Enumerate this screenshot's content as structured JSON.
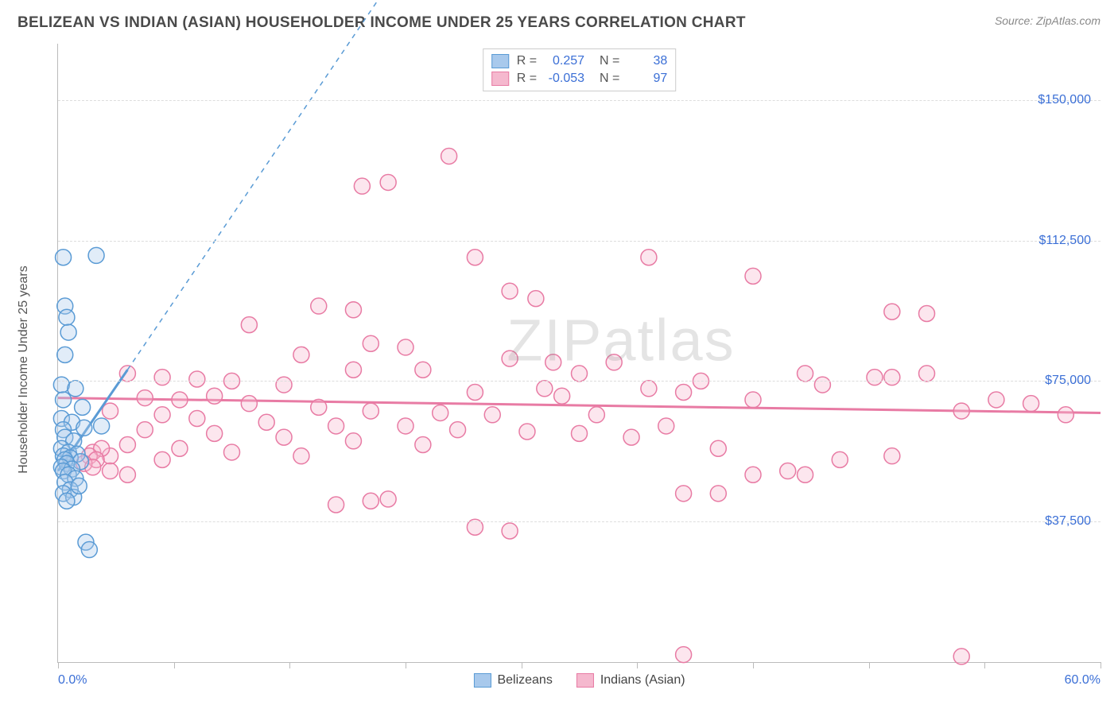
{
  "title": "BELIZEAN VS INDIAN (ASIAN) HOUSEHOLDER INCOME UNDER 25 YEARS CORRELATION CHART",
  "source": "Source: ZipAtlas.com",
  "watermark": "ZIPatlas",
  "chart": {
    "type": "scatter",
    "background_color": "#ffffff",
    "grid_color": "#dddddd",
    "axis_color": "#bbbbbb",
    "text_color": "#555555",
    "value_color": "#3b6fd6",
    "y_axis_label": "Householder Income Under 25 years",
    "xlim": [
      0,
      60
    ],
    "ylim": [
      0,
      165000
    ],
    "x_ticks": [
      0,
      6.7,
      13.3,
      20,
      26.7,
      33.3,
      40,
      46.7,
      53.3,
      60
    ],
    "x_range_labels": {
      "min": "0.0%",
      "max": "60.0%"
    },
    "y_gridlines": [
      {
        "value": 37500,
        "label": "$37,500"
      },
      {
        "value": 75000,
        "label": "$75,000"
      },
      {
        "value": 112500,
        "label": "$112,500"
      },
      {
        "value": 150000,
        "label": "$150,000"
      }
    ],
    "marker_radius": 10,
    "marker_stroke_width": 1.5,
    "marker_fill_opacity": 0.35,
    "series": [
      {
        "name": "Belizeans",
        "color_stroke": "#5a9bd5",
        "color_fill": "#a8c9ec",
        "R": "0.257",
        "N": "38",
        "trend": {
          "x1": 0,
          "y1": 51000,
          "x2": 4,
          "y2": 78000,
          "dash_to_x": 20,
          "dash_to_y": 187500
        },
        "points": [
          [
            0.3,
            108000
          ],
          [
            2.2,
            108500
          ],
          [
            0.4,
            95000
          ],
          [
            0.5,
            92000
          ],
          [
            0.6,
            88000
          ],
          [
            0.4,
            82000
          ],
          [
            0.2,
            74000
          ],
          [
            1.0,
            73000
          ],
          [
            0.3,
            70000
          ],
          [
            1.4,
            68000
          ],
          [
            0.2,
            65000
          ],
          [
            0.8,
            64000
          ],
          [
            0.3,
            62000
          ],
          [
            1.5,
            62500
          ],
          [
            0.4,
            60000
          ],
          [
            0.9,
            59000
          ],
          [
            0.2,
            57000
          ],
          [
            0.6,
            56000
          ],
          [
            1.1,
            55500
          ],
          [
            0.3,
            55000
          ],
          [
            0.7,
            54500
          ],
          [
            0.4,
            54000
          ],
          [
            1.3,
            53500
          ],
          [
            0.5,
            53000
          ],
          [
            0.2,
            52000
          ],
          [
            0.8,
            51500
          ],
          [
            0.3,
            51000
          ],
          [
            0.6,
            50000
          ],
          [
            1.0,
            49000
          ],
          [
            0.4,
            48000
          ],
          [
            0.7,
            46000
          ],
          [
            0.3,
            45000
          ],
          [
            0.9,
            44000
          ],
          [
            0.5,
            43000
          ],
          [
            1.2,
            47000
          ],
          [
            1.6,
            32000
          ],
          [
            1.8,
            30000
          ],
          [
            2.5,
            63000
          ]
        ]
      },
      {
        "name": "Indians (Asian)",
        "color_stroke": "#e87ba4",
        "color_fill": "#f5b8ce",
        "R": "-0.053",
        "N": "97",
        "trend": {
          "x1": 0,
          "y1": 70500,
          "x2": 60,
          "y2": 66500
        },
        "points": [
          [
            22.5,
            135000
          ],
          [
            19,
            128000
          ],
          [
            17.5,
            127000
          ],
          [
            24,
            108000
          ],
          [
            34,
            108000
          ],
          [
            40,
            103000
          ],
          [
            26,
            99000
          ],
          [
            27.5,
            97000
          ],
          [
            15,
            95000
          ],
          [
            17,
            94000
          ],
          [
            50,
            93000
          ],
          [
            11,
            90000
          ],
          [
            48,
            93500
          ],
          [
            18,
            85000
          ],
          [
            20,
            84000
          ],
          [
            14,
            82000
          ],
          [
            26,
            81000
          ],
          [
            28.5,
            80000
          ],
          [
            17,
            78000
          ],
          [
            21,
            78000
          ],
          [
            30,
            77000
          ],
          [
            43,
            77000
          ],
          [
            50,
            77000
          ],
          [
            4,
            77000
          ],
          [
            6,
            76000
          ],
          [
            8,
            75500
          ],
          [
            10,
            75000
          ],
          [
            13,
            74000
          ],
          [
            34,
            73000
          ],
          [
            36,
            72000
          ],
          [
            24,
            72000
          ],
          [
            29,
            71000
          ],
          [
            9,
            71000
          ],
          [
            5,
            70500
          ],
          [
            47,
            76000
          ],
          [
            7,
            70000
          ],
          [
            11,
            69000
          ],
          [
            15,
            68000
          ],
          [
            18,
            67000
          ],
          [
            22,
            66500
          ],
          [
            25,
            66000
          ],
          [
            31,
            66000
          ],
          [
            37,
            75000
          ],
          [
            40,
            70000
          ],
          [
            44,
            74000
          ],
          [
            54,
            70000
          ],
          [
            58,
            66000
          ],
          [
            3,
            67000
          ],
          [
            6,
            66000
          ],
          [
            8,
            65000
          ],
          [
            12,
            64000
          ],
          [
            16,
            63000
          ],
          [
            20,
            63000
          ],
          [
            23,
            62000
          ],
          [
            27,
            61500
          ],
          [
            30,
            61000
          ],
          [
            33,
            60000
          ],
          [
            35,
            63000
          ],
          [
            5,
            62000
          ],
          [
            9,
            61000
          ],
          [
            13,
            60000
          ],
          [
            17,
            59000
          ],
          [
            21,
            58000
          ],
          [
            48,
            76000
          ],
          [
            52,
            67000
          ],
          [
            56,
            69000
          ],
          [
            4,
            58000
          ],
          [
            7,
            57000
          ],
          [
            10,
            56000
          ],
          [
            14,
            55000
          ],
          [
            3,
            55000
          ],
          [
            6,
            54000
          ],
          [
            2,
            56000
          ],
          [
            2.5,
            57000
          ],
          [
            1.8,
            55000
          ],
          [
            2.2,
            54000
          ],
          [
            1.5,
            53000
          ],
          [
            38,
            57000
          ],
          [
            40,
            50000
          ],
          [
            43,
            50000
          ],
          [
            42,
            51000
          ],
          [
            45,
            54000
          ],
          [
            48,
            55000
          ],
          [
            36,
            45000
          ],
          [
            38,
            45000
          ],
          [
            16,
            42000
          ],
          [
            18,
            43000
          ],
          [
            19,
            43500
          ],
          [
            24,
            36000
          ],
          [
            26,
            35000
          ],
          [
            36,
            2000
          ],
          [
            52,
            1500
          ],
          [
            2,
            52000
          ],
          [
            3,
            51000
          ],
          [
            4,
            50000
          ],
          [
            28,
            73000
          ],
          [
            32,
            80000
          ]
        ]
      }
    ]
  }
}
